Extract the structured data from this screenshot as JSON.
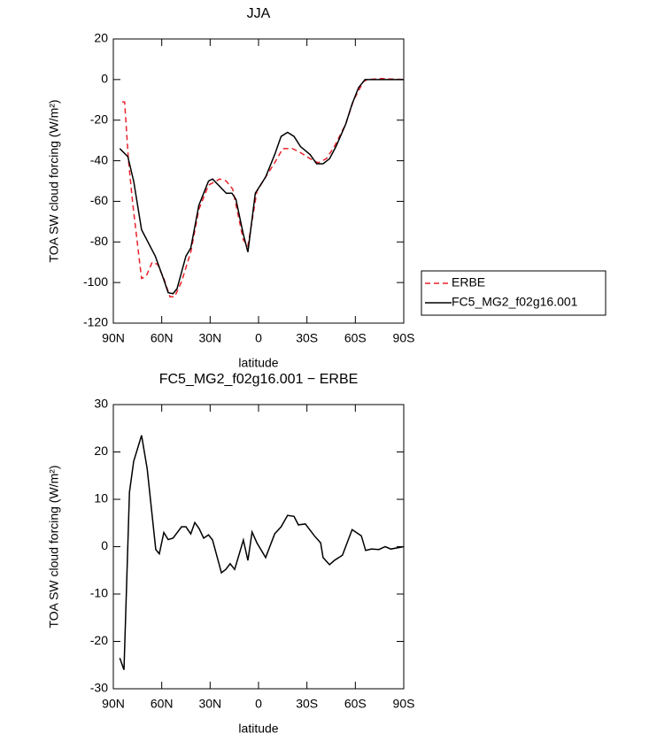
{
  "chart_data": [
    {
      "type": "line",
      "title": "JJA",
      "xlabel": "latitude",
      "ylabel": "TOA SW cloud forcing (W/m²)",
      "xlim": [
        90,
        -90
      ],
      "xticks": [
        {
          "value": 90,
          "label": "90N"
        },
        {
          "value": 60,
          "label": "60N"
        },
        {
          "value": 30,
          "label": "30N"
        },
        0,
        {
          "value": -30,
          "label": "30S"
        },
        {
          "value": -60,
          "label": "60S"
        },
        {
          "value": -90,
          "label": "90S"
        }
      ],
      "ylim": [
        -120,
        20
      ],
      "yticks": [
        20,
        0,
        -20,
        -40,
        -60,
        -80,
        -100,
        -120
      ],
      "legend": "right",
      "series": [
        {
          "name": "ERBE",
          "color": "#e8212a",
          "dashed": true,
          "x": [
            84.5,
            83,
            80.7,
            78,
            72.5,
            69.7,
            65.9,
            62.6,
            58.7,
            54.9,
            52,
            47.7,
            42,
            37,
            31,
            24,
            20,
            16,
            9.4,
            6.6,
            1,
            -4.4,
            -10,
            -15,
            -21,
            -26,
            -32,
            -37,
            -42,
            -47,
            -54,
            -59,
            -65,
            -67.5,
            -76,
            -90
          ],
          "values": [
            -11,
            -11,
            -39,
            -61,
            -98,
            -97,
            -90,
            -91,
            -98,
            -107,
            -107,
            -99.5,
            -85,
            -64,
            -52,
            -49,
            -50,
            -54,
            -79,
            -82,
            -55,
            -48,
            -41,
            -34,
            -34,
            -36,
            -39,
            -41,
            -39,
            -33,
            -22,
            -10,
            -1,
            0,
            0.5,
            0
          ]
        },
        {
          "name": "FC5_MG2_f02g16.001",
          "color": "#000000",
          "dashed": false,
          "x": [
            86,
            81,
            77.4,
            72.5,
            64,
            59,
            56,
            53,
            50.5,
            45,
            42,
            37,
            31,
            28.5,
            20,
            16.5,
            14,
            9.5,
            6.6,
            2,
            -4.4,
            -10,
            -14,
            -18,
            -22,
            -26,
            -32,
            -36,
            -40,
            -44,
            -48,
            -54,
            -58,
            -62,
            -66,
            -90
          ],
          "values": [
            -34,
            -38,
            -50,
            -74,
            -87,
            -98,
            -105,
            -105.5,
            -103,
            -87,
            -83,
            -62,
            -50,
            -49,
            -56,
            -56,
            -59,
            -76,
            -85,
            -56,
            -48,
            -37,
            -28,
            -26,
            -28,
            -33,
            -37,
            -41.5,
            -41.5,
            -39,
            -33,
            -22,
            -12,
            -4,
            0,
            0
          ]
        }
      ]
    },
    {
      "type": "line",
      "title": "FC5_MG2_f02g16.001 − ERBE",
      "xlabel": "latitude",
      "ylabel": "TOA SW cloud forcing (W/m²)",
      "xlim": [
        90,
        -90
      ],
      "xticks": [
        {
          "value": 90,
          "label": "90N"
        },
        {
          "value": 60,
          "label": "60N"
        },
        {
          "value": 30,
          "label": "30N"
        },
        0,
        {
          "value": -30,
          "label": "30S"
        },
        {
          "value": -60,
          "label": "60S"
        },
        {
          "value": -90,
          "label": "90S"
        }
      ],
      "ylim": [
        -30,
        30
      ],
      "yticks": [
        30,
        20,
        10,
        0,
        -10,
        -20,
        -30
      ],
      "series": [
        {
          "color": "#000000",
          "dashed": false,
          "x": [
            86,
            83.4,
            80,
            77.4,
            72.5,
            69,
            67,
            63.7,
            61.5,
            58.7,
            56,
            53,
            47.7,
            45,
            42,
            39.5,
            36.8,
            34,
            31,
            28.5,
            23,
            20.3,
            17.6,
            14.8,
            9.4,
            6.6,
            4,
            1,
            -4.4,
            -10,
            -14,
            -18,
            -22,
            -24.7,
            -29,
            -34.6,
            -38.5,
            -40,
            -44,
            -47,
            -52,
            -58,
            -63.7,
            -66.4,
            -70,
            -74.6,
            -78.5,
            -82,
            -90
          ],
          "values": [
            -23.5,
            -26,
            11.5,
            18,
            23.5,
            16.4,
            10,
            -0.6,
            -1.5,
            3,
            1.5,
            1.8,
            4.2,
            4.2,
            2.7,
            5.1,
            3.8,
            1.8,
            2.5,
            1.4,
            -5.5,
            -4.8,
            -3.6,
            -4.8,
            1.4,
            -2.9,
            3.1,
            0.8,
            -2.3,
            2.7,
            4.2,
            6.6,
            6.4,
            4.6,
            4.8,
            2.3,
            0.8,
            -2.3,
            -3.8,
            -2.9,
            -1.8,
            3.6,
            2.3,
            -0.8,
            -0.5,
            -0.6,
            0,
            -0.5,
            0
          ]
        }
      ]
    }
  ]
}
